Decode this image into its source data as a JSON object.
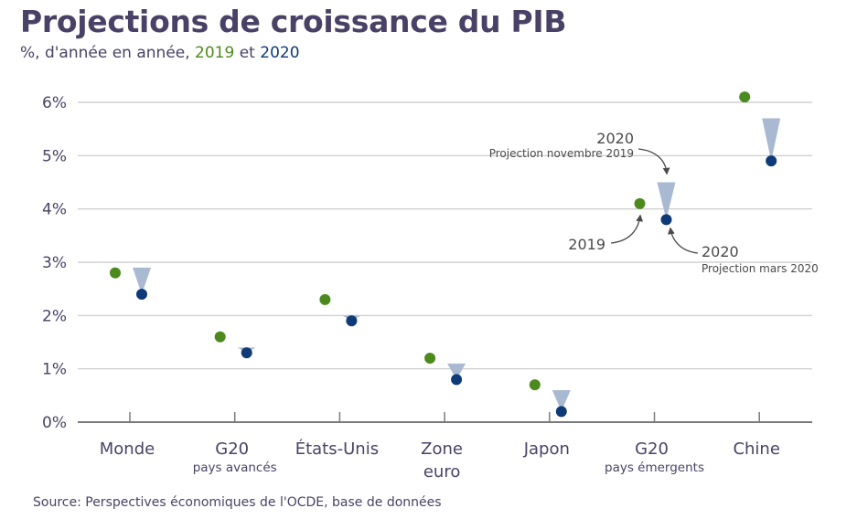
{
  "header": {
    "title": "Projections de croissance du PIB",
    "subtitle_prefix": "%, d'année en année,",
    "subtitle_2019": "2019",
    "subtitle_et": "et",
    "subtitle_2020": "2020"
  },
  "source": "Source: Perspectives économiques de l'OCDE, base de données",
  "colors": {
    "y2019": "#4d8a1e",
    "y2020": "#0e3a78",
    "nov_projection": "#a9b9d1",
    "grid": "#c8c8c8",
    "axis": "#7a7a7a",
    "text": "#4a4266"
  },
  "annotations": {
    "nov_year": "2020",
    "nov_label": "Projection novembre 2019",
    "mar_year": "2020",
    "mar_label": "Projection mars 2020",
    "y2019_label": "2019"
  },
  "chart_data": {
    "type": "scatter",
    "title": "Projections de croissance du PIB",
    "subtitle": "%, d'année en année, 2019 et 2020",
    "xlabel": "",
    "ylabel": "",
    "ylim": [
      0,
      6
    ],
    "yticks": [
      "0%",
      "1%",
      "2%",
      "3%",
      "4%",
      "5%",
      "6%"
    ],
    "grid": true,
    "categories": [
      {
        "label": "Monde",
        "sub": ""
      },
      {
        "label": "G20",
        "sub": "pays avancés"
      },
      {
        "label": "États-Unis",
        "sub": ""
      },
      {
        "label": "Zone",
        "sub": "",
        "label2": "euro"
      },
      {
        "label": "Japon",
        "sub": ""
      },
      {
        "label": "G20",
        "sub": "pays émergents"
      },
      {
        "label": "Chine",
        "sub": ""
      }
    ],
    "series": [
      {
        "name": "2019",
        "marker": "dot",
        "values": [
          2.8,
          1.6,
          2.3,
          1.2,
          0.7,
          4.1,
          6.1
        ]
      },
      {
        "name": "2020 (Projection mars 2020)",
        "marker": "dot",
        "values": [
          2.4,
          1.3,
          1.9,
          0.8,
          0.2,
          3.8,
          4.9
        ]
      },
      {
        "name": "2020 (Projection novembre 2019)",
        "marker": "triangle",
        "values": [
          2.9,
          1.4,
          2.0,
          1.1,
          0.6,
          4.5,
          5.7
        ]
      }
    ]
  }
}
